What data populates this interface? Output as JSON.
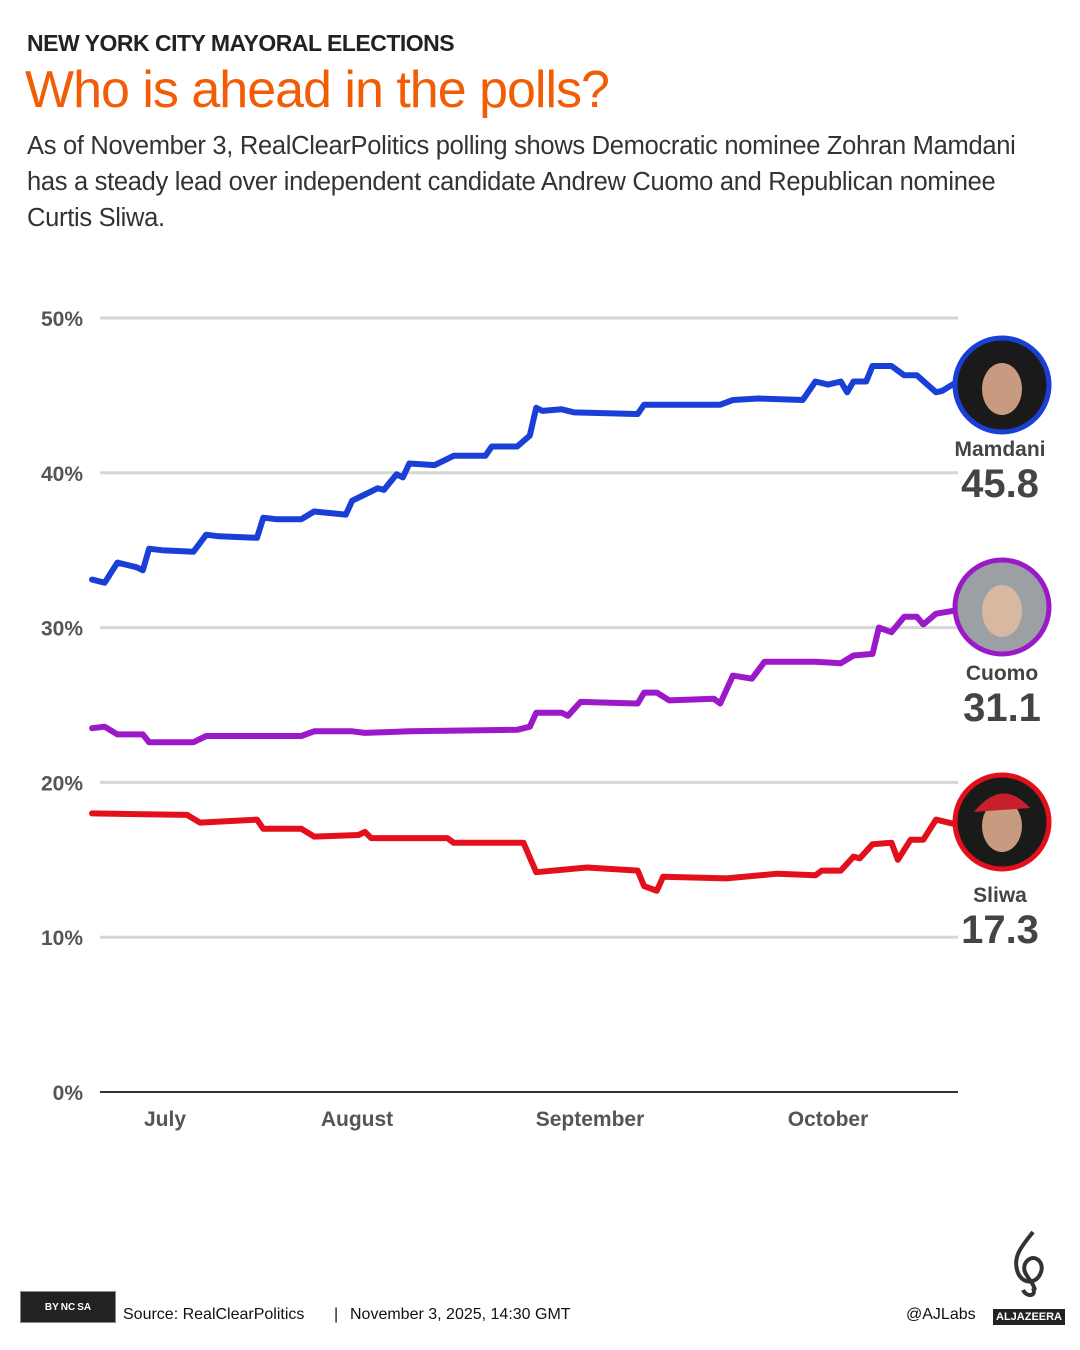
{
  "header": {
    "kicker": "NEW YORK CITY MAYORAL ELECTIONS",
    "title": "Who is ahead in the polls?",
    "description": "As of November 3, RealClearPolitics polling shows Democratic nominee Zohran Mamdani has a steady lead over independent candidate Andrew Cuomo and Republican nominee Curtis Sliwa."
  },
  "chart_data": {
    "type": "line",
    "title": "",
    "xlabel": "",
    "ylabel": "",
    "ylim": [
      0,
      50
    ],
    "xlim": [
      "2025-06-20",
      "2025-11-03"
    ],
    "y_ticks": [
      "0%",
      "10%",
      "20%",
      "30%",
      "40%",
      "50%"
    ],
    "x_tick_labels": [
      "July",
      "August",
      "September",
      "October"
    ],
    "grid": true,
    "legend": "direct labels at right end",
    "series": [
      {
        "name": "Mamdani",
        "color": "#1a3fd6",
        "final_value": "45.8",
        "points": [
          [
            "2025-06-20",
            33.1
          ],
          [
            "2025-06-22",
            32.9
          ],
          [
            "2025-06-24",
            34.2
          ],
          [
            "2025-06-27",
            33.9
          ],
          [
            "2025-06-28",
            33.7
          ],
          [
            "2025-06-29",
            35.1
          ],
          [
            "2025-07-01",
            35.0
          ],
          [
            "2025-07-06",
            34.9
          ],
          [
            "2025-07-08",
            36.0
          ],
          [
            "2025-07-10",
            35.9
          ],
          [
            "2025-07-16",
            35.8
          ],
          [
            "2025-07-17",
            37.1
          ],
          [
            "2025-07-19",
            37.0
          ],
          [
            "2025-07-23",
            37.0
          ],
          [
            "2025-07-25",
            37.5
          ],
          [
            "2025-07-30",
            37.3
          ],
          [
            "2025-07-31",
            38.2
          ],
          [
            "2025-08-02",
            38.6
          ],
          [
            "2025-08-04",
            39.0
          ],
          [
            "2025-08-05",
            38.9
          ],
          [
            "2025-08-07",
            39.9
          ],
          [
            "2025-08-08",
            39.7
          ],
          [
            "2025-08-09",
            40.6
          ],
          [
            "2025-08-13",
            40.5
          ],
          [
            "2025-08-16",
            41.1
          ],
          [
            "2025-08-21",
            41.1
          ],
          [
            "2025-08-22",
            41.7
          ],
          [
            "2025-08-26",
            41.7
          ],
          [
            "2025-08-28",
            42.4
          ],
          [
            "2025-08-29",
            44.2
          ],
          [
            "2025-08-30",
            44.0
          ],
          [
            "2025-09-02",
            44.1
          ],
          [
            "2025-09-04",
            43.9
          ],
          [
            "2025-09-14",
            43.8
          ],
          [
            "2025-09-15",
            44.4
          ],
          [
            "2025-09-27",
            44.4
          ],
          [
            "2025-09-29",
            44.7
          ],
          [
            "2025-10-03",
            44.8
          ],
          [
            "2025-10-10",
            44.7
          ],
          [
            "2025-10-12",
            45.9
          ],
          [
            "2025-10-14",
            45.7
          ],
          [
            "2025-10-16",
            45.9
          ],
          [
            "2025-10-17",
            45.2
          ],
          [
            "2025-10-18",
            45.9
          ],
          [
            "2025-10-20",
            45.9
          ],
          [
            "2025-10-21",
            46.9
          ],
          [
            "2025-10-24",
            46.9
          ],
          [
            "2025-10-26",
            46.3
          ],
          [
            "2025-10-28",
            46.3
          ],
          [
            "2025-10-31",
            45.2
          ],
          [
            "2025-11-01",
            45.3
          ],
          [
            "2025-11-03",
            45.8
          ]
        ]
      },
      {
        "name": "Cuomo",
        "color": "#9b19c9",
        "final_value": "31.1",
        "points": [
          [
            "2025-06-20",
            23.5
          ],
          [
            "2025-06-22",
            23.6
          ],
          [
            "2025-06-24",
            23.1
          ],
          [
            "2025-06-28",
            23.1
          ],
          [
            "2025-06-29",
            22.6
          ],
          [
            "2025-07-06",
            22.6
          ],
          [
            "2025-07-08",
            23.0
          ],
          [
            "2025-07-23",
            23.0
          ],
          [
            "2025-07-25",
            23.3
          ],
          [
            "2025-07-31",
            23.3
          ],
          [
            "2025-08-02",
            23.2
          ],
          [
            "2025-08-09",
            23.3
          ],
          [
            "2025-08-26",
            23.4
          ],
          [
            "2025-08-28",
            23.6
          ],
          [
            "2025-08-29",
            24.5
          ],
          [
            "2025-09-02",
            24.5
          ],
          [
            "2025-09-03",
            24.3
          ],
          [
            "2025-09-05",
            25.2
          ],
          [
            "2025-09-14",
            25.1
          ],
          [
            "2025-09-15",
            25.8
          ],
          [
            "2025-09-17",
            25.8
          ],
          [
            "2025-09-19",
            25.3
          ],
          [
            "2025-09-26",
            25.4
          ],
          [
            "2025-09-27",
            25.1
          ],
          [
            "2025-09-29",
            26.9
          ],
          [
            "2025-10-02",
            26.7
          ],
          [
            "2025-10-04",
            27.8
          ],
          [
            "2025-10-12",
            27.8
          ],
          [
            "2025-10-16",
            27.7
          ],
          [
            "2025-10-18",
            28.2
          ],
          [
            "2025-10-21",
            28.3
          ],
          [
            "2025-10-22",
            30.0
          ],
          [
            "2025-10-24",
            29.7
          ],
          [
            "2025-10-26",
            30.7
          ],
          [
            "2025-10-28",
            30.7
          ],
          [
            "2025-10-29",
            30.2
          ],
          [
            "2025-10-31",
            30.9
          ],
          [
            "2025-11-03",
            31.1
          ]
        ]
      },
      {
        "name": "Sliwa",
        "color": "#e3101b",
        "final_value": "17.3",
        "points": [
          [
            "2025-06-20",
            18.0
          ],
          [
            "2025-07-05",
            17.9
          ],
          [
            "2025-07-07",
            17.4
          ],
          [
            "2025-07-16",
            17.6
          ],
          [
            "2025-07-17",
            17.0
          ],
          [
            "2025-07-23",
            17.0
          ],
          [
            "2025-07-25",
            16.5
          ],
          [
            "2025-08-01",
            16.6
          ],
          [
            "2025-08-02",
            16.8
          ],
          [
            "2025-08-03",
            16.4
          ],
          [
            "2025-08-15",
            16.4
          ],
          [
            "2025-08-16",
            16.1
          ],
          [
            "2025-08-27",
            16.1
          ],
          [
            "2025-08-29",
            14.2
          ],
          [
            "2025-09-06",
            14.5
          ],
          [
            "2025-09-14",
            14.3
          ],
          [
            "2025-09-15",
            13.3
          ],
          [
            "2025-09-17",
            13.0
          ],
          [
            "2025-09-18",
            13.9
          ],
          [
            "2025-09-28",
            13.8
          ],
          [
            "2025-10-06",
            14.1
          ],
          [
            "2025-10-12",
            14.0
          ],
          [
            "2025-10-13",
            14.3
          ],
          [
            "2025-10-16",
            14.3
          ],
          [
            "2025-10-18",
            15.2
          ],
          [
            "2025-10-19",
            15.1
          ],
          [
            "2025-10-21",
            16.0
          ],
          [
            "2025-10-24",
            16.1
          ],
          [
            "2025-10-25",
            15.0
          ],
          [
            "2025-10-27",
            16.3
          ],
          [
            "2025-10-29",
            16.3
          ],
          [
            "2025-10-31",
            17.6
          ],
          [
            "2025-11-03",
            17.3
          ]
        ]
      }
    ]
  },
  "footer": {
    "license_icon": "creative-commons-by-nc-sa",
    "license_labels": [
      "BY",
      "NC",
      "SA"
    ],
    "source": "Source: RealClearPolitics",
    "separator": "|",
    "timestamp": "November 3, 2025, 14:30 GMT",
    "handle": "@AJLabs",
    "brand": "ALJAZEERA"
  }
}
